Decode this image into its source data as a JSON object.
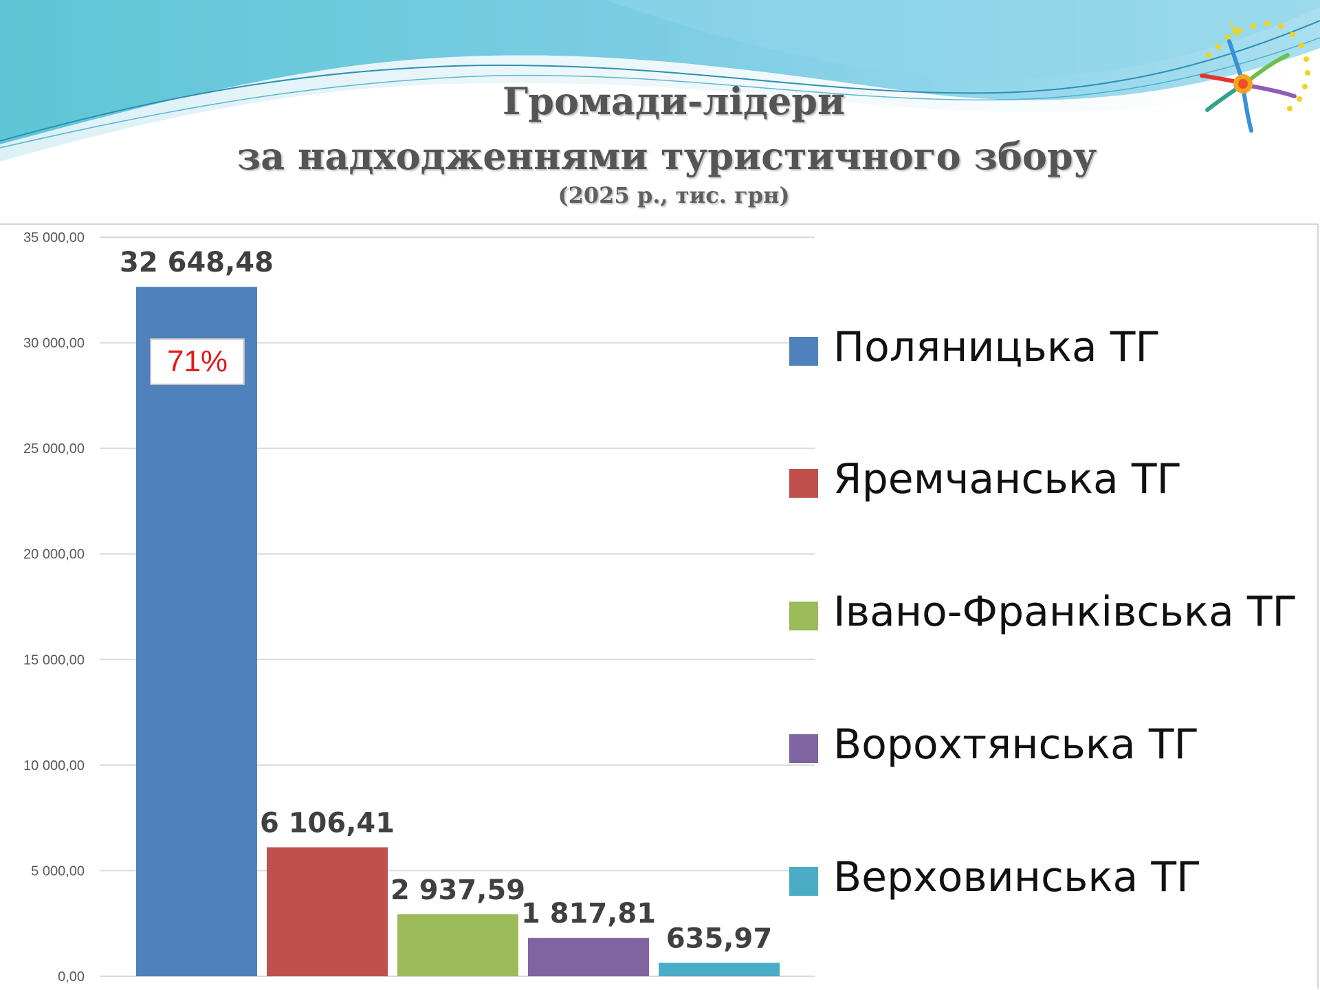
{
  "slide": {
    "title_line1": "Громади-лідери",
    "title_line2": "за надходженнями туристичного збору",
    "title_line3": "(2025 р., тис. грн)"
  },
  "chart_data": {
    "type": "bar",
    "categories": [
      "Поляницька ТГ",
      "Яремчанська ТГ",
      "Івано-Франківська ТГ",
      "Ворохтянська ТГ",
      "Верховинська ТГ"
    ],
    "values": [
      32648.48,
      6106.41,
      2937.59,
      1817.81,
      635.97
    ],
    "value_labels": [
      "32 648,48",
      "6 106,41",
      "2 937,59",
      "1 817,81",
      "635,97"
    ],
    "colors": [
      "#4f81bd",
      "#c0504d",
      "#9bbb59",
      "#8064a2",
      "#4bacc6"
    ],
    "y_ticks": [
      0,
      5000,
      10000,
      15000,
      20000,
      25000,
      30000,
      35000
    ],
    "y_tick_labels": [
      "0,00",
      "5 000,00",
      "10 000,00",
      "15 000,00",
      "20 000,00",
      "25 000,00",
      "30 000,00",
      "35 000,00"
    ],
    "ylim": [
      0,
      35000
    ],
    "grid": true,
    "legend_position": "right",
    "annotation": "71%"
  }
}
